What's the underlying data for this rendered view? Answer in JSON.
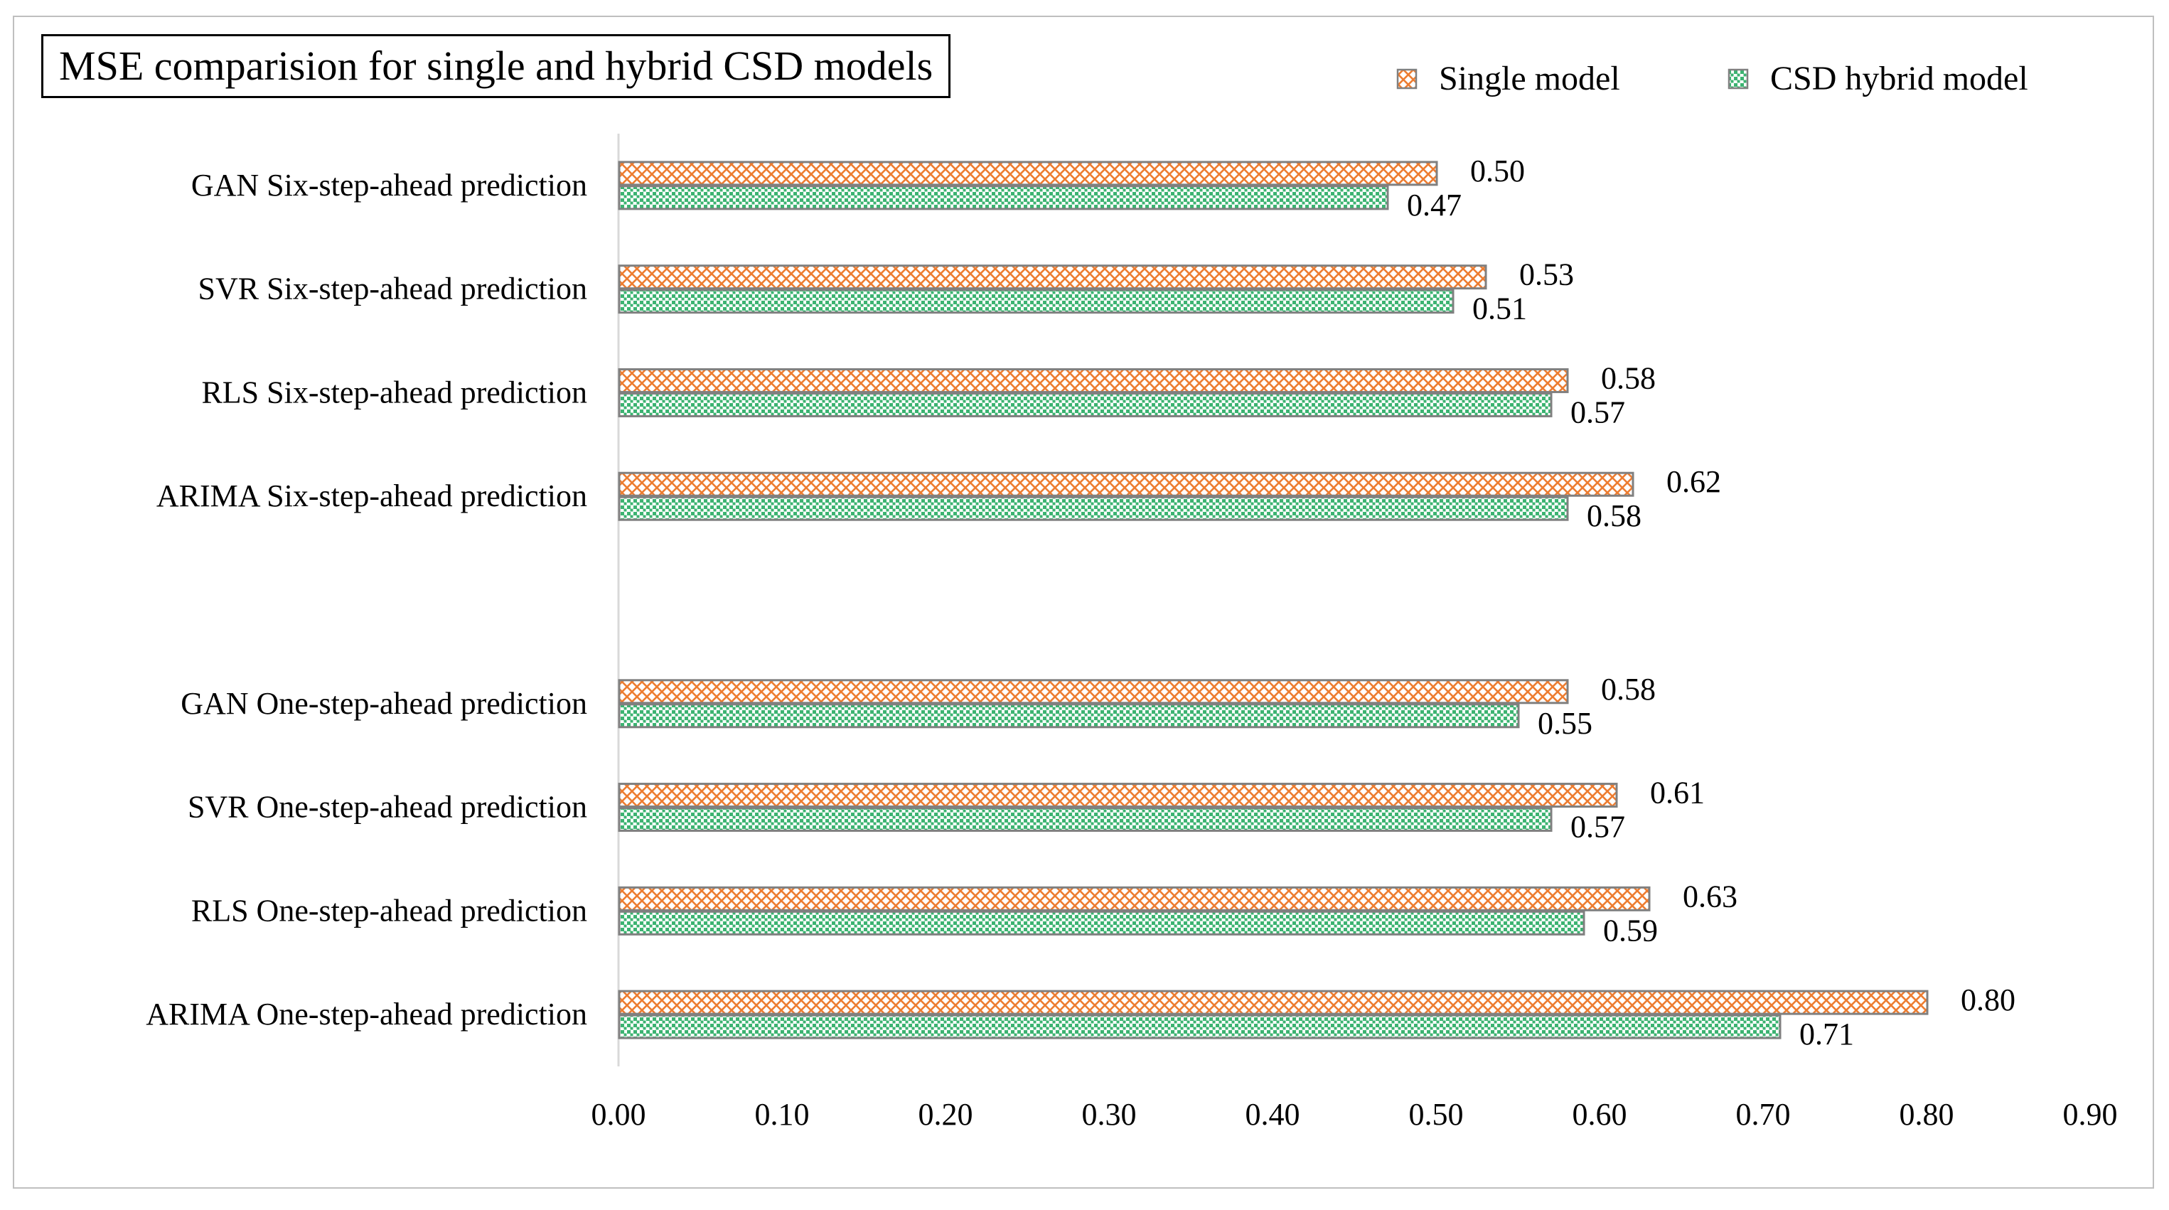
{
  "chart_data": {
    "type": "bar",
    "orientation": "horizontal",
    "title": "MSE  comparision for single and hybrid CSD models",
    "categories": [
      "GAN Six-step-ahead prediction",
      "SVR Six-step-ahead prediction",
      "RLS Six-step-ahead prediction",
      "ARIMA Six-step-ahead prediction",
      "",
      "GAN One-step-ahead prediction",
      "SVR One-step-ahead prediction",
      "RLS One-step-ahead prediction",
      "ARIMA One-step-ahead prediction"
    ],
    "series": [
      {
        "name": "Single model",
        "values": [
          0.5,
          0.53,
          0.58,
          0.62,
          null,
          0.58,
          0.61,
          0.63,
          0.8
        ],
        "labels": [
          "0.50",
          "0.53",
          "0.58",
          "0.62",
          "",
          "0.58",
          "0.61",
          "0.63",
          "0.80"
        ],
        "color": "#ed7d31",
        "pattern": "crosshatch"
      },
      {
        "name": "CSD hybrid model",
        "values": [
          0.47,
          0.51,
          0.57,
          0.58,
          null,
          0.55,
          0.57,
          0.59,
          0.71
        ],
        "labels": [
          "0.47",
          "0.51",
          "0.57",
          "0.58",
          "",
          "0.55",
          "0.57",
          "0.59",
          "0.71"
        ],
        "color": "#3cb371",
        "pattern": "dots"
      }
    ],
    "xlim": [
      0,
      0.9
    ],
    "xticks": [
      "0.00",
      "0.10",
      "0.20",
      "0.30",
      "0.40",
      "0.50",
      "0.60",
      "0.70",
      "0.80",
      "0.90"
    ],
    "xlabel": "",
    "ylabel": "",
    "grid": false,
    "legend_position": "top-right",
    "bar_outline_color": "#808080"
  }
}
